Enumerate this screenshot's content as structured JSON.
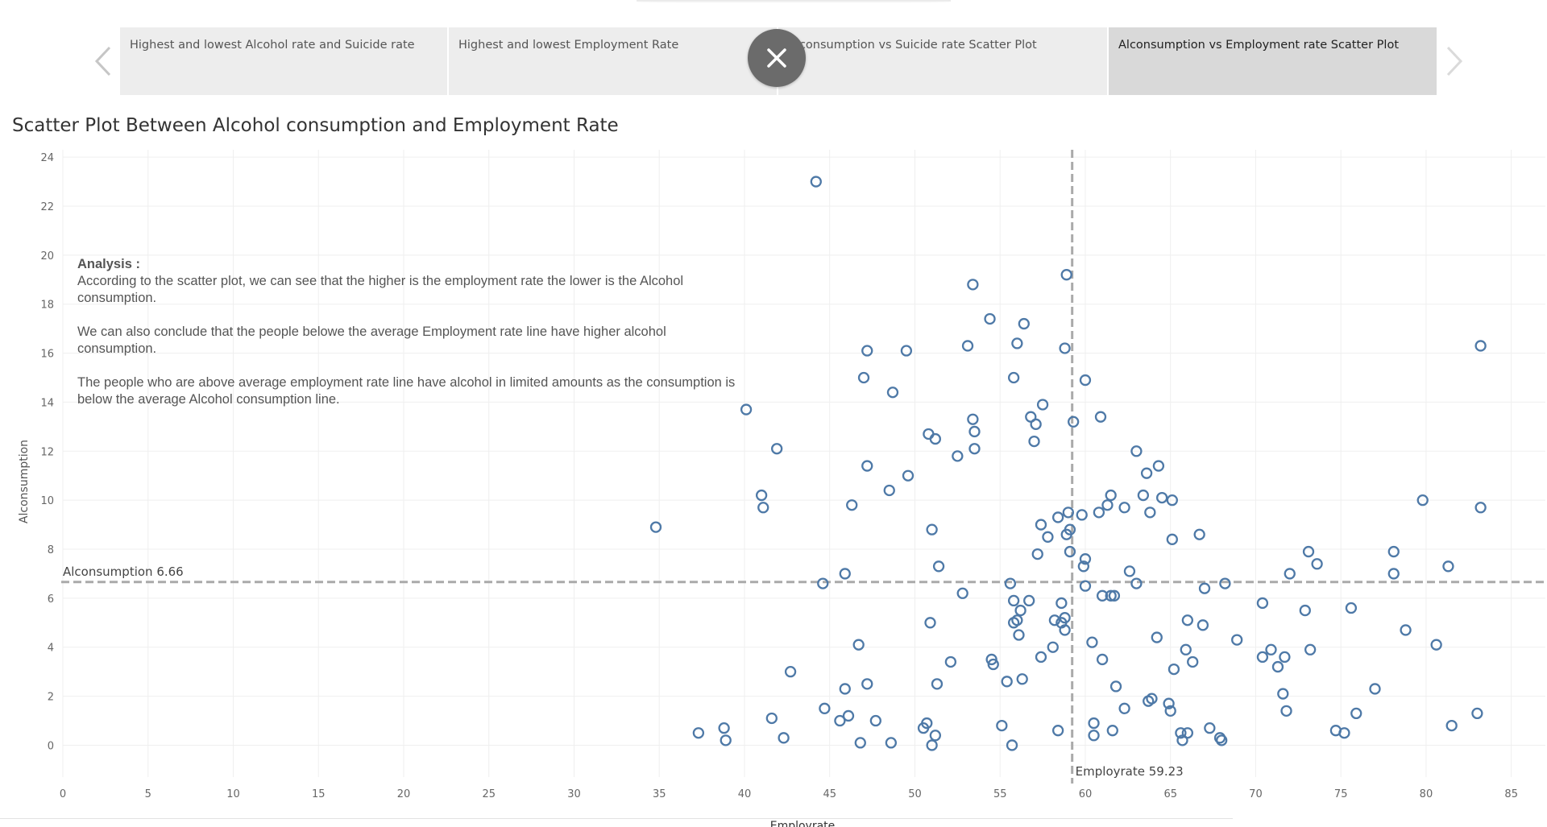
{
  "tabs": [
    {
      "label": "Highest and lowest Alcohol rate and Suicide rate",
      "active": false
    },
    {
      "label": "Highest and lowest Employment Rate",
      "active": false
    },
    {
      "label": "Alconsumption vs Suicide rate Scatter Plot",
      "active": false
    },
    {
      "label": "Alconsumption vs Employment rate Scatter Plot",
      "active": true
    }
  ],
  "icons": {
    "prev": "chevron-left-icon",
    "next": "chevron-right-icon",
    "close": "close-icon"
  },
  "sheet_title": "Scatter Plot Between Alcohol consumption and Employment Rate",
  "analysis": {
    "heading": "Analysis :",
    "line1": "According to the scatter plot, we can see that the higher is the employment rate the lower is the Alcohol consumption.",
    "line2": "We can also conclude that the people belowe the average Employment rate line have higher alcohol consumption.",
    "line3": "The people who are above average employment rate line have alcohol in limited amounts as the consumption is below the average Alcohol consumption line."
  },
  "chart_data": {
    "type": "scatter",
    "xlabel": "Employrate",
    "ylabel": "Alconsumption",
    "xlim": [
      0,
      87
    ],
    "ylim": [
      -1.3,
      24.3
    ],
    "xticks": [
      0,
      5,
      10,
      15,
      20,
      25,
      30,
      35,
      40,
      45,
      50,
      55,
      60,
      65,
      70,
      75,
      80,
      85
    ],
    "yticks": [
      0,
      2,
      4,
      6,
      8,
      10,
      12,
      14,
      16,
      18,
      20,
      22,
      24
    ],
    "grid": true,
    "marker_color": "#4e79a7",
    "reference_lines": [
      {
        "axis": "y",
        "value": 6.66,
        "label": "Alconsumption 6.66"
      },
      {
        "axis": "x",
        "value": 59.23,
        "label": "Employrate 59.23"
      }
    ],
    "points": [
      [
        44.2,
        23.0
      ],
      [
        34.8,
        8.9
      ],
      [
        37.3,
        0.5
      ],
      [
        38.8,
        0.7
      ],
      [
        38.9,
        0.2
      ],
      [
        40.1,
        13.7
      ],
      [
        41.0,
        10.2
      ],
      [
        41.1,
        9.7
      ],
      [
        41.6,
        1.1
      ],
      [
        41.9,
        12.1
      ],
      [
        42.3,
        0.3
      ],
      [
        42.7,
        3.0
      ],
      [
        44.6,
        6.6
      ],
      [
        44.7,
        1.5
      ],
      [
        45.6,
        1.0
      ],
      [
        45.9,
        7.0
      ],
      [
        45.9,
        2.3
      ],
      [
        46.1,
        1.2
      ],
      [
        46.3,
        9.8
      ],
      [
        46.7,
        4.1
      ],
      [
        46.8,
        0.1
      ],
      [
        47.0,
        15.0
      ],
      [
        47.2,
        16.1
      ],
      [
        47.2,
        11.4
      ],
      [
        47.2,
        2.5
      ],
      [
        47.7,
        1.0
      ],
      [
        48.5,
        10.4
      ],
      [
        48.6,
        0.1
      ],
      [
        48.7,
        14.4
      ],
      [
        49.5,
        16.1
      ],
      [
        49.6,
        11.0
      ],
      [
        50.5,
        0.7
      ],
      [
        50.7,
        0.9
      ],
      [
        50.8,
        12.7
      ],
      [
        50.9,
        5.0
      ],
      [
        51.0,
        8.8
      ],
      [
        51.0,
        0.0
      ],
      [
        51.2,
        0.4
      ],
      [
        51.2,
        12.5
      ],
      [
        51.3,
        2.5
      ],
      [
        51.4,
        7.3
      ],
      [
        52.1,
        3.4
      ],
      [
        52.5,
        11.8
      ],
      [
        52.8,
        6.2
      ],
      [
        53.1,
        16.3
      ],
      [
        53.4,
        18.8
      ],
      [
        53.4,
        13.3
      ],
      [
        53.5,
        12.8
      ],
      [
        53.5,
        12.1
      ],
      [
        54.4,
        17.4
      ],
      [
        54.5,
        3.5
      ],
      [
        54.6,
        3.3
      ],
      [
        55.1,
        0.8
      ],
      [
        55.4,
        2.6
      ],
      [
        55.6,
        6.6
      ],
      [
        55.7,
        0.0
      ],
      [
        55.8,
        15.0
      ],
      [
        55.8,
        5.9
      ],
      [
        55.8,
        5.0
      ],
      [
        56.0,
        16.4
      ],
      [
        56.0,
        5.1
      ],
      [
        56.1,
        4.5
      ],
      [
        56.2,
        5.5
      ],
      [
        56.3,
        2.7
      ],
      [
        56.4,
        17.2
      ],
      [
        56.7,
        5.9
      ],
      [
        56.8,
        13.4
      ],
      [
        57.0,
        12.4
      ],
      [
        57.1,
        13.1
      ],
      [
        57.2,
        7.8
      ],
      [
        57.4,
        3.6
      ],
      [
        57.4,
        9.0
      ],
      [
        57.5,
        13.9
      ],
      [
        57.8,
        8.5
      ],
      [
        58.1,
        4.0
      ],
      [
        58.2,
        5.1
      ],
      [
        58.4,
        0.6
      ],
      [
        58.4,
        9.3
      ],
      [
        58.6,
        5.0
      ],
      [
        58.6,
        5.8
      ],
      [
        58.8,
        4.7
      ],
      [
        58.8,
        16.2
      ],
      [
        58.8,
        5.2
      ],
      [
        58.9,
        8.6
      ],
      [
        58.9,
        19.2
      ],
      [
        59.0,
        9.5
      ],
      [
        59.1,
        8.8
      ],
      [
        59.1,
        7.9
      ],
      [
        59.3,
        13.2
      ],
      [
        59.8,
        9.4
      ],
      [
        59.9,
        7.3
      ],
      [
        60.0,
        7.6
      ],
      [
        60.0,
        6.5
      ],
      [
        60.0,
        14.9
      ],
      [
        60.4,
        4.2
      ],
      [
        60.5,
        0.9
      ],
      [
        60.5,
        0.4
      ],
      [
        60.8,
        9.5
      ],
      [
        60.9,
        13.4
      ],
      [
        61.0,
        3.5
      ],
      [
        61.0,
        6.1
      ],
      [
        61.3,
        9.8
      ],
      [
        61.5,
        10.2
      ],
      [
        61.5,
        6.1
      ],
      [
        61.6,
        0.6
      ],
      [
        61.7,
        6.1
      ],
      [
        61.8,
        2.4
      ],
      [
        62.3,
        9.7
      ],
      [
        62.3,
        1.5
      ],
      [
        62.6,
        7.1
      ],
      [
        63.0,
        12.0
      ],
      [
        63.0,
        6.6
      ],
      [
        63.4,
        10.2
      ],
      [
        63.6,
        11.1
      ],
      [
        63.7,
        1.8
      ],
      [
        63.8,
        9.5
      ],
      [
        63.9,
        1.9
      ],
      [
        64.2,
        4.4
      ],
      [
        64.3,
        11.4
      ],
      [
        64.5,
        10.1
      ],
      [
        64.9,
        1.7
      ],
      [
        65.0,
        1.4
      ],
      [
        65.1,
        10.0
      ],
      [
        65.1,
        8.4
      ],
      [
        65.2,
        3.1
      ],
      [
        65.6,
        0.5
      ],
      [
        65.7,
        0.2
      ],
      [
        65.9,
        3.9
      ],
      [
        66.0,
        5.1
      ],
      [
        66.0,
        0.5
      ],
      [
        66.3,
        3.4
      ],
      [
        66.7,
        8.6
      ],
      [
        66.9,
        4.9
      ],
      [
        67.0,
        6.4
      ],
      [
        67.3,
        0.7
      ],
      [
        67.9,
        0.3
      ],
      [
        68.0,
        0.2
      ],
      [
        68.2,
        6.6
      ],
      [
        68.9,
        4.3
      ],
      [
        70.4,
        5.8
      ],
      [
        70.4,
        3.6
      ],
      [
        70.9,
        3.9
      ],
      [
        71.3,
        3.2
      ],
      [
        71.6,
        2.1
      ],
      [
        71.7,
        3.6
      ],
      [
        71.8,
        1.4
      ],
      [
        72.0,
        7.0
      ],
      [
        72.9,
        5.5
      ],
      [
        73.1,
        7.9
      ],
      [
        73.2,
        3.9
      ],
      [
        73.6,
        7.4
      ],
      [
        74.7,
        0.6
      ],
      [
        75.2,
        0.5
      ],
      [
        75.6,
        5.6
      ],
      [
        75.9,
        1.3
      ],
      [
        77.0,
        2.3
      ],
      [
        78.1,
        7.9
      ],
      [
        78.1,
        7.0
      ],
      [
        78.8,
        4.7
      ],
      [
        79.8,
        10.0
      ],
      [
        80.6,
        4.1
      ],
      [
        81.3,
        7.3
      ],
      [
        81.5,
        0.8
      ],
      [
        83.0,
        1.3
      ],
      [
        83.2,
        16.3
      ],
      [
        83.2,
        9.7
      ]
    ]
  }
}
